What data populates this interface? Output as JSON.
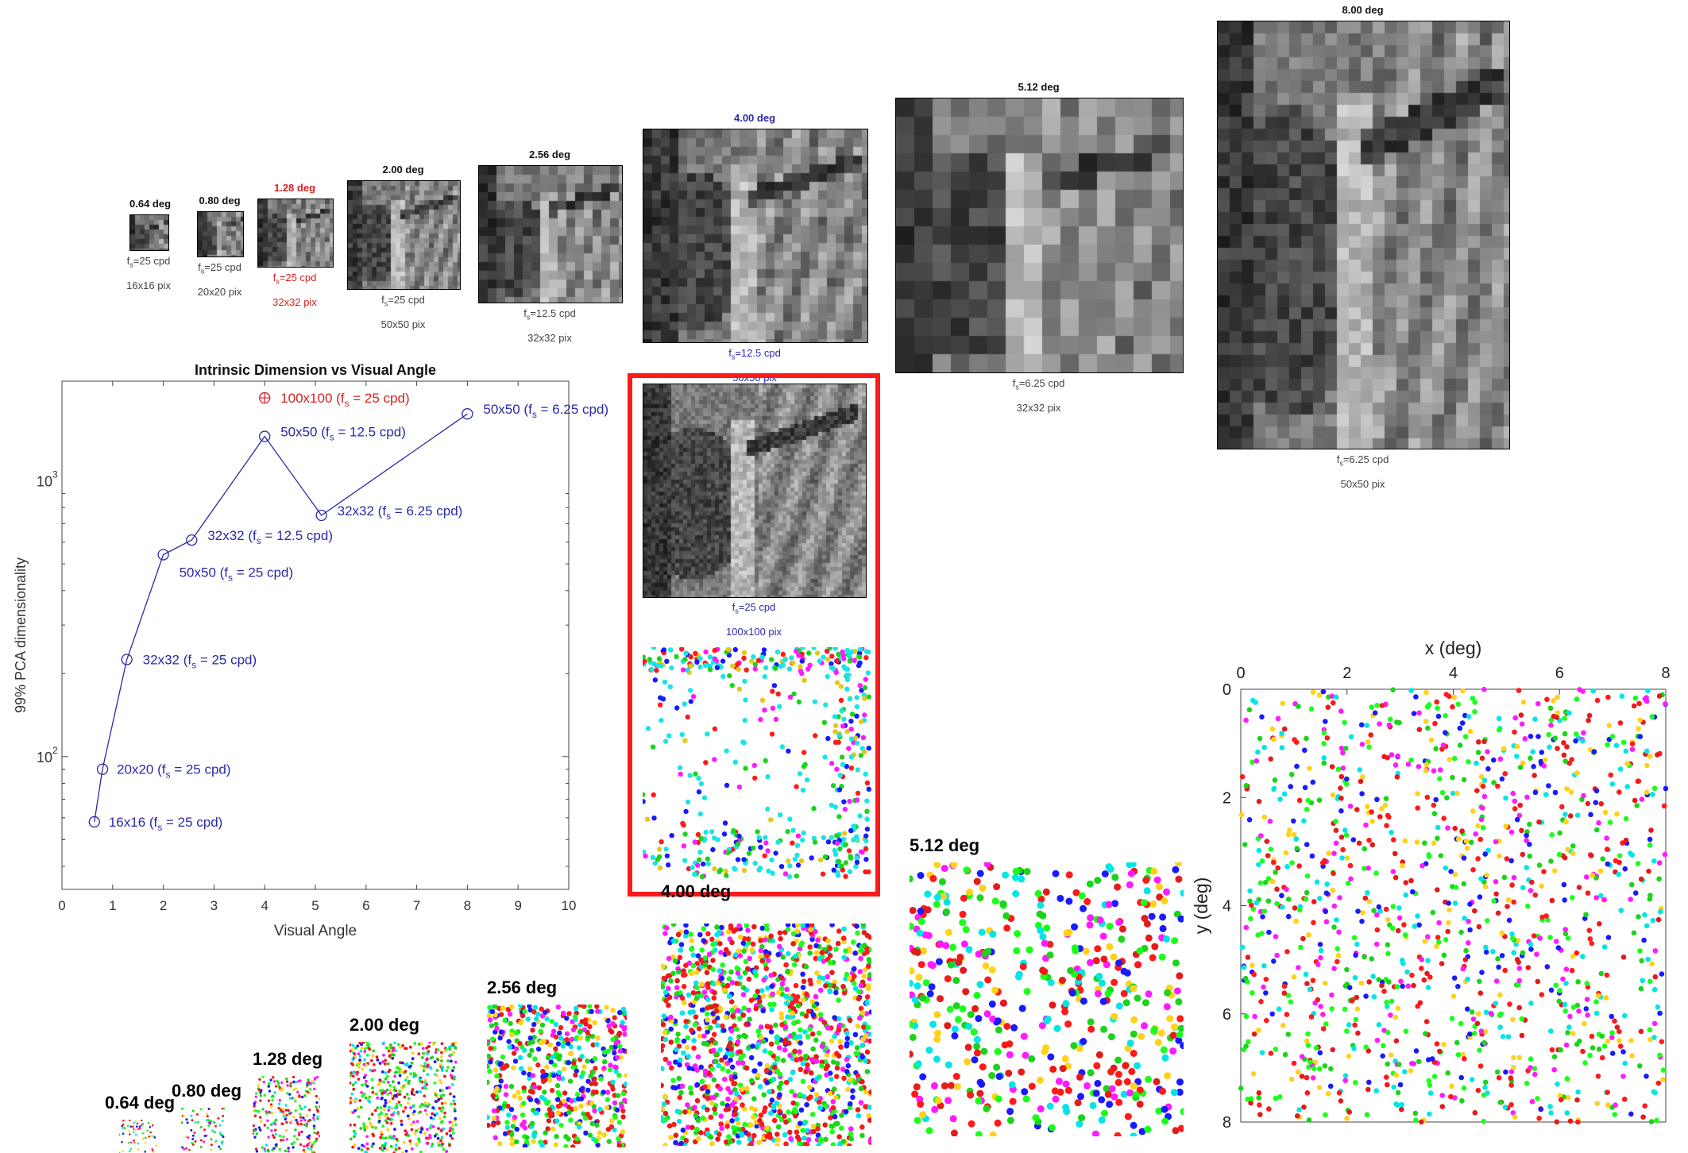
{
  "chart_data": {
    "type": "scatter",
    "title": "Intrinsic Dimension vs Visual Angle",
    "xlabel": "Visual Angle",
    "ylabel": "99% PCA dimensionality",
    "xlim": [
      0,
      10
    ],
    "ylim": [
      33,
      2300
    ],
    "yscale": "log",
    "grid": false,
    "xticks": [
      "0",
      "1",
      "2",
      "3",
      "4",
      "5",
      "6",
      "7",
      "8",
      "9",
      "10"
    ],
    "yticks": [
      {
        "value": 100,
        "base": "10",
        "exp": "2"
      },
      {
        "value": 1000,
        "base": "10",
        "exp": "3"
      }
    ],
    "series": [
      {
        "color": "#2a2aa8",
        "points": [
          {
            "x": 0.64,
            "y": 58,
            "size": "16x16",
            "fs": "25 cpd"
          },
          {
            "x": 0.8,
            "y": 90,
            "size": "20x20",
            "fs": "25 cpd"
          },
          {
            "x": 1.28,
            "y": 225,
            "size": "32x32",
            "fs": "25 cpd"
          },
          {
            "x": 2.0,
            "y": 540,
            "size": "50x50",
            "fs": "25 cpd"
          },
          {
            "x": 2.56,
            "y": 610,
            "size": "32x32",
            "fs": "12.5 cpd"
          },
          {
            "x": 4.0,
            "y": 1450,
            "size": "50x50",
            "fs": "12.5 cpd"
          },
          {
            "x": 5.12,
            "y": 750,
            "size": "32x32",
            "fs": "6.25 cpd"
          },
          {
            "x": 8.0,
            "y": 1750,
            "size": "50x50",
            "fs": "6.25 cpd"
          }
        ]
      },
      {
        "color": "#d42020",
        "points": [
          {
            "x": 4.0,
            "y": 2000,
            "size": "100x100",
            "fs": "25 cpd"
          }
        ]
      }
    ]
  },
  "patches": [
    {
      "title": "0.64 deg",
      "fs": "25 cpd",
      "pix": "16x16 pix",
      "color": "black"
    },
    {
      "title": "0.80 deg",
      "fs": "25 cpd",
      "pix": "20x20 pix",
      "color": "black"
    },
    {
      "title": "1.28 deg",
      "fs": "25 cpd",
      "pix": "32x32 pix",
      "color": "red"
    },
    {
      "title": "2.00 deg",
      "fs": "25 cpd",
      "pix": "50x50 pix",
      "color": "black"
    },
    {
      "title": "2.56 deg",
      "fs": "12.5 cpd",
      "pix": "32x32 pix",
      "color": "black"
    },
    {
      "title": "4.00 deg",
      "fs": "12.5 cpd",
      "pix": "50x50 pix",
      "color": "blue"
    },
    {
      "title": "5.12 deg",
      "fs": "6.25 cpd",
      "pix": "32x32 pix",
      "color": "black"
    },
    {
      "title": "8.00 deg",
      "fs": "6.25 cpd",
      "pix": "50x50 pix",
      "color": "black"
    }
  ],
  "highlight_patch": {
    "fs": "25 cpd",
    "pix": "100x100 pix"
  },
  "mosaics": [
    "0.64 deg",
    "0.80 deg",
    "1.28 deg",
    "2.00 deg",
    "2.56 deg",
    "4.00 deg",
    "5.12 deg"
  ],
  "big_mosaic": {
    "xlabel": "x (deg)",
    "ylabel": "y (deg)",
    "xticks": [
      "0",
      "2",
      "4",
      "6",
      "8"
    ],
    "yticks": [
      "0",
      "2",
      "4",
      "6",
      "8"
    ]
  },
  "fs_label": "f",
  "fs_sub": "s",
  "cone_colors": [
    "#ff1a1a",
    "#1aff1a",
    "#1a1aff",
    "#00e5e5",
    "#ff1aff",
    "#ffd21a",
    "#1ad41a",
    "#e51a1a"
  ]
}
